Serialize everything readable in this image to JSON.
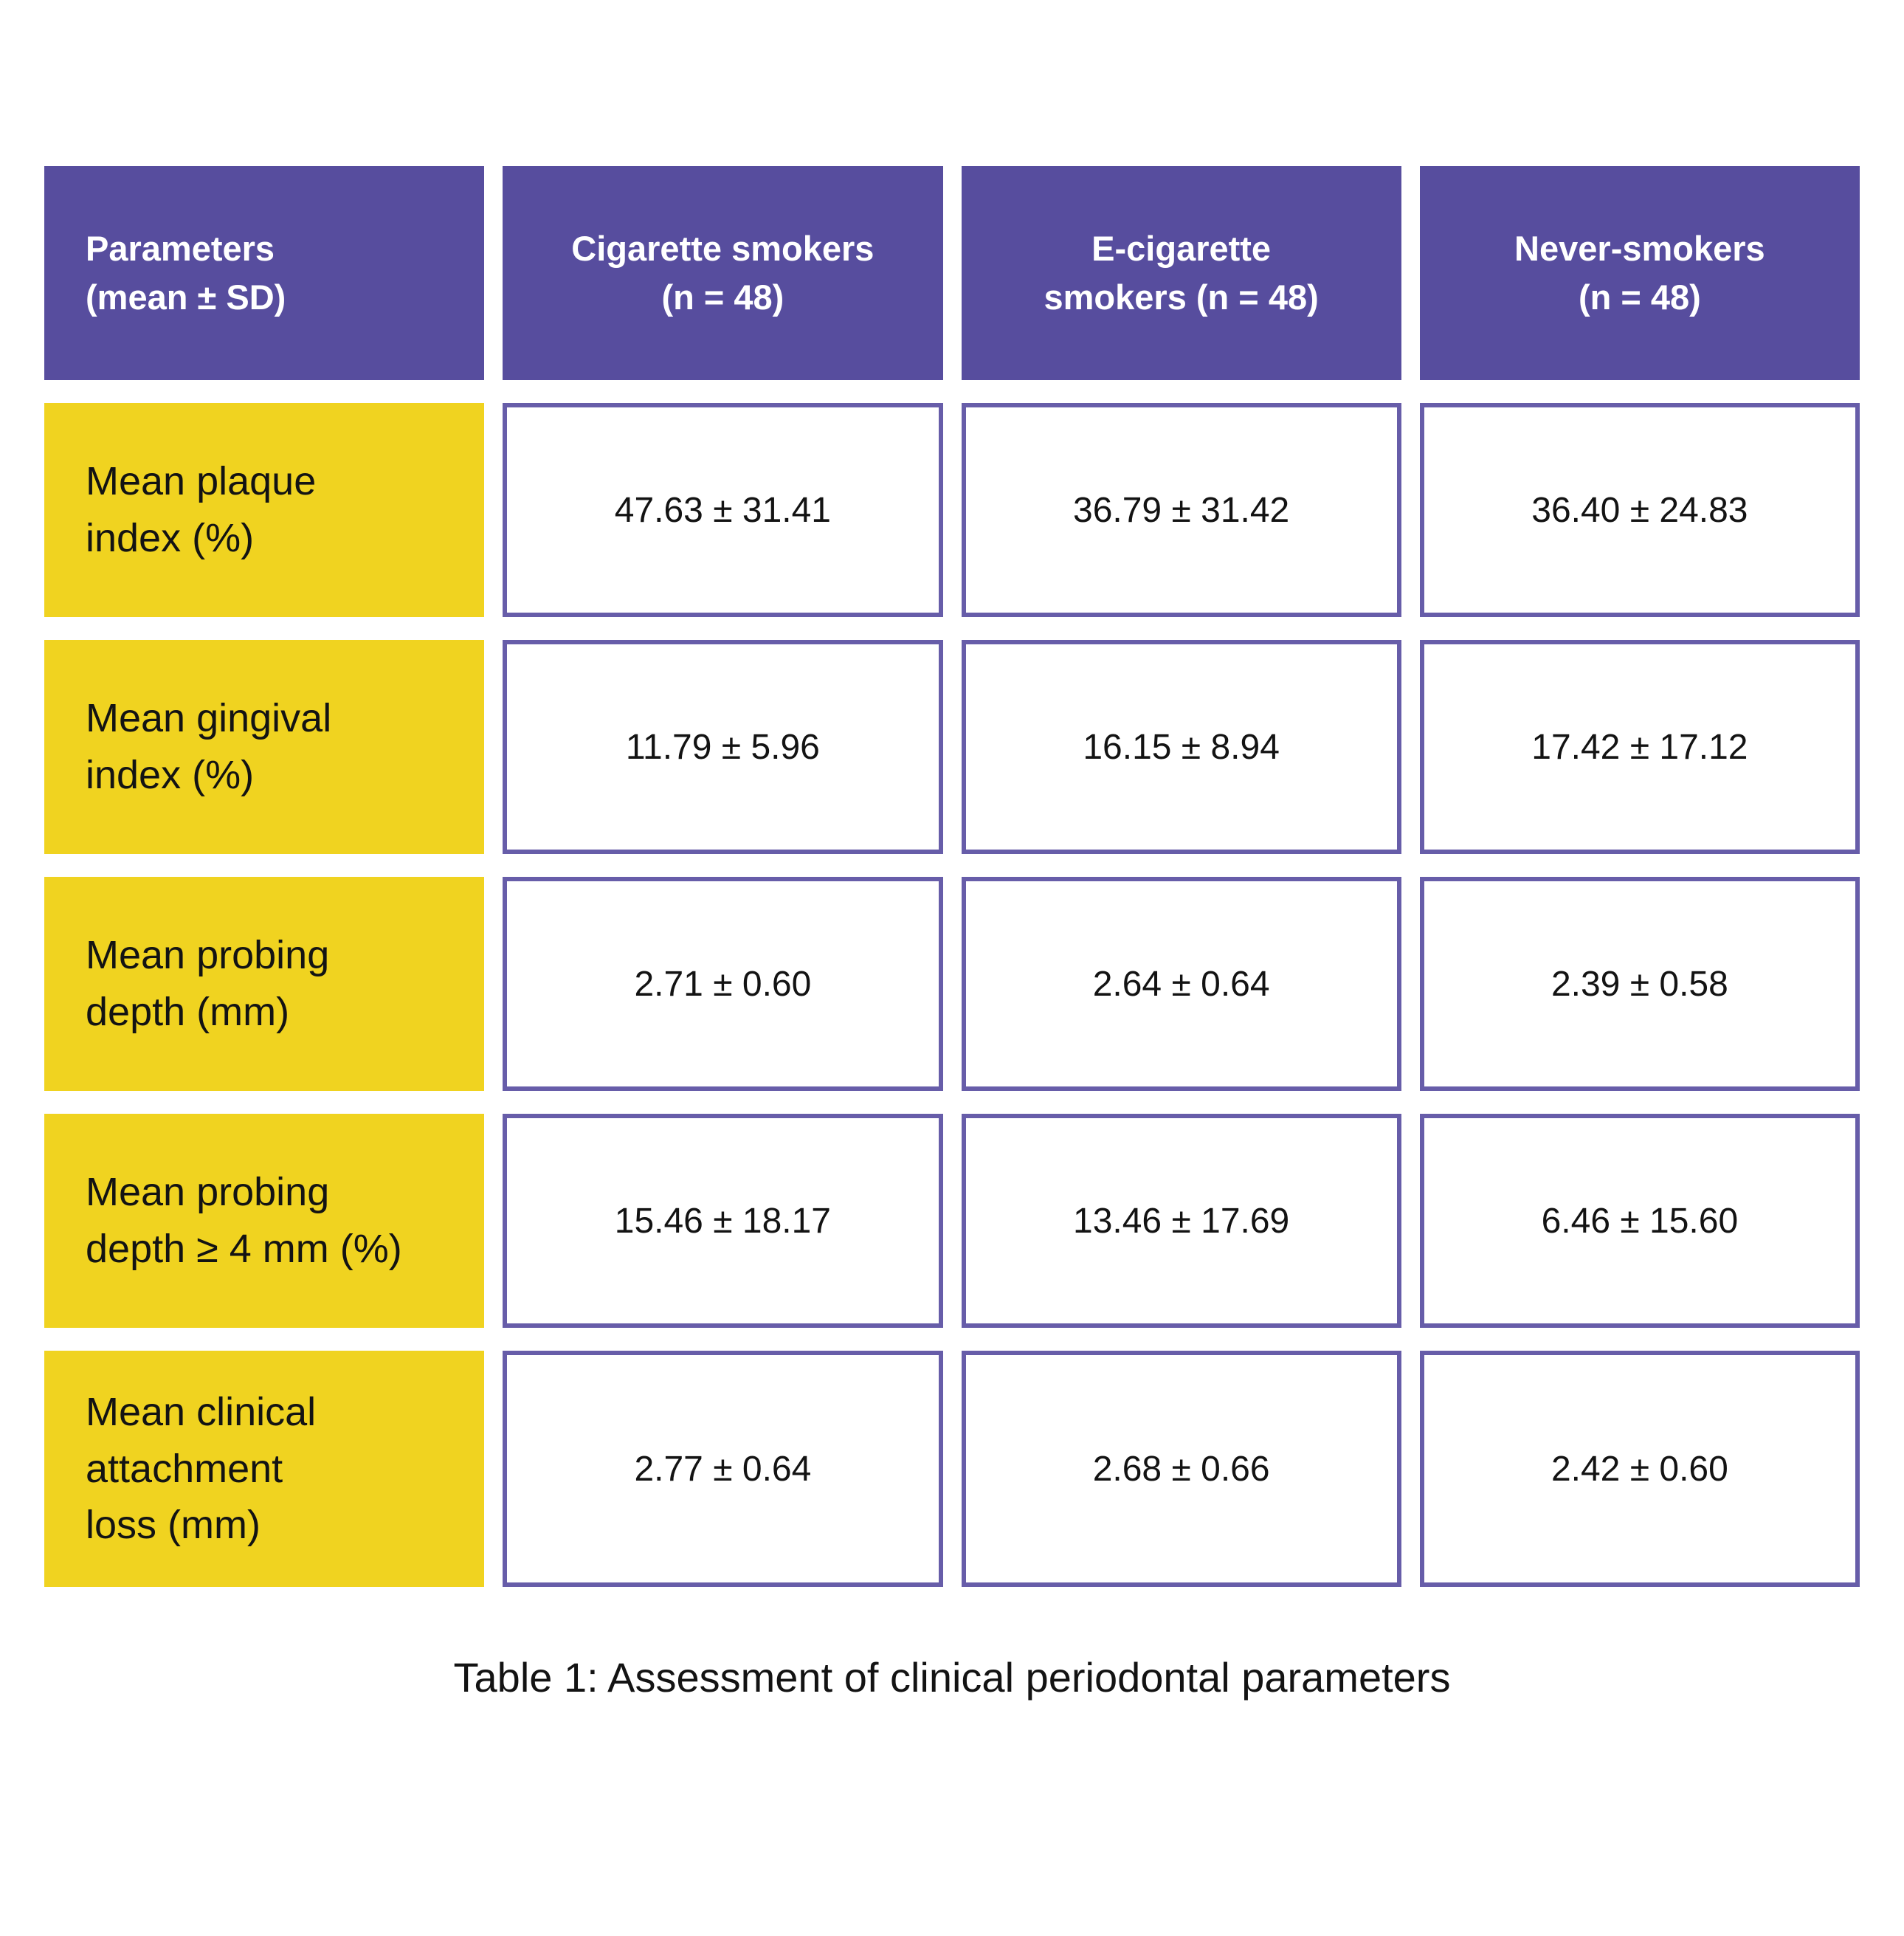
{
  "colors": {
    "header_bg": "#574D9E",
    "header_text": "#FFFFFF",
    "label_bg": "#F0D320",
    "cell_border": "#675DA9",
    "text": "#131313",
    "page_bg": "#FFFFFF"
  },
  "table": {
    "header": [
      "Parameters\n(mean ± SD)",
      "Cigarette smokers\n(n = 48)",
      "E-cigarette\nsmokers (n = 48)",
      "Never-smokers\n(n = 48)"
    ],
    "rows": [
      {
        "label": "Mean plaque\nindex (%)",
        "values": [
          "47.63 ± 31.41",
          "36.79 ± 31.42",
          "36.40 ± 24.83"
        ]
      },
      {
        "label": "Mean gingival\nindex (%)",
        "values": [
          "11.79 ± 5.96",
          "16.15 ± 8.94",
          "17.42 ± 17.12"
        ]
      },
      {
        "label": "Mean probing\ndepth (mm)",
        "values": [
          "2.71 ± 0.60",
          "2.64 ± 0.64",
          "2.39 ± 0.58"
        ]
      },
      {
        "label": "Mean probing\ndepth ≥ 4 mm (%)",
        "values": [
          "15.46 ± 18.17",
          "13.46 ± 17.69",
          "6.46 ± 15.60"
        ]
      },
      {
        "label": "Mean clinical\nattachment\nloss (mm)",
        "values": [
          "2.77 ± 0.64",
          "2.68 ± 0.66",
          "2.42 ± 0.60"
        ]
      }
    ],
    "caption": "Table 1: Assessment of clinical periodontal parameters"
  },
  "chart_data": {
    "type": "table",
    "title": "Table 1: Assessment of clinical periodontal parameters",
    "columns": [
      "Parameters (mean ± SD)",
      "Cigarette smokers (n = 48)",
      "E-cigarette smokers (n = 48)",
      "Never-smokers (n = 48)"
    ],
    "rows": [
      [
        "Mean plaque index (%)",
        "47.63 ± 31.41",
        "36.79 ± 31.42",
        "36.40 ± 24.83"
      ],
      [
        "Mean gingival index (%)",
        "11.79 ± 5.96",
        "16.15 ± 8.94",
        "17.42 ± 17.12"
      ],
      [
        "Mean probing depth (mm)",
        "2.71 ± 0.60",
        "2.64 ± 0.64",
        "2.39 ± 0.58"
      ],
      [
        "Mean probing depth ≥ 4 mm (%)",
        "15.46 ± 18.17",
        "13.46 ± 17.69",
        "6.46 ± 15.60"
      ],
      [
        "Mean clinical attachment loss (mm)",
        "2.77 ± 0.64",
        "2.68 ± 0.66",
        "2.42 ± 0.60"
      ]
    ]
  }
}
